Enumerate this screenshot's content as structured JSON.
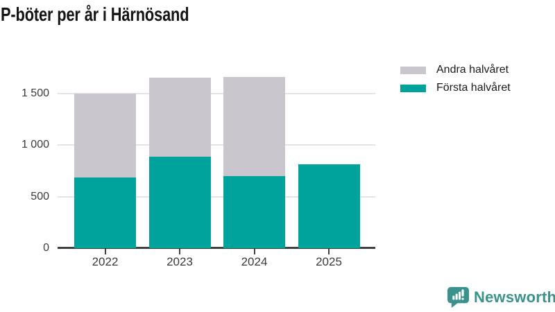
{
  "title": "P-böter per år i Härnösand",
  "brand": {
    "name": "Newsworthy",
    "logo_icon": "bar-chart-speech-bubble-icon"
  },
  "colors": {
    "first_half": "#00a39c",
    "second_half": "#c9c6ce",
    "axis": "#404040",
    "grid": "#e3e2e6",
    "label": "#3a3a3a",
    "title": "#141414",
    "brand_teal": "#3b928c"
  },
  "chart_data": {
    "type": "bar",
    "stacked": true,
    "title": "P-böter per år i Härnösand",
    "categories": [
      "2022",
      "2023",
      "2024",
      "2025"
    ],
    "series": [
      {
        "name": "Första halvåret",
        "color_key": "first_half",
        "values": [
          685,
          890,
          700,
          815
        ]
      },
      {
        "name": "Andra halvåret",
        "color_key": "second_half",
        "values": [
          815,
          765,
          960,
          0
        ]
      }
    ],
    "stack_totals": [
      1500,
      1655,
      1660,
      815
    ],
    "ylim": [
      0,
      1735
    ],
    "yticks": [
      0,
      500,
      1000,
      1500
    ],
    "ytick_labels": [
      "0",
      "500",
      "1 000",
      "1 500"
    ],
    "xlabel": "",
    "ylabel": "",
    "grid": "horizontal",
    "legend_position": "top-right",
    "legend": [
      {
        "label": "Andra halvåret",
        "color_key": "second_half"
      },
      {
        "label": "Första halvåret",
        "color_key": "first_half"
      }
    ]
  }
}
